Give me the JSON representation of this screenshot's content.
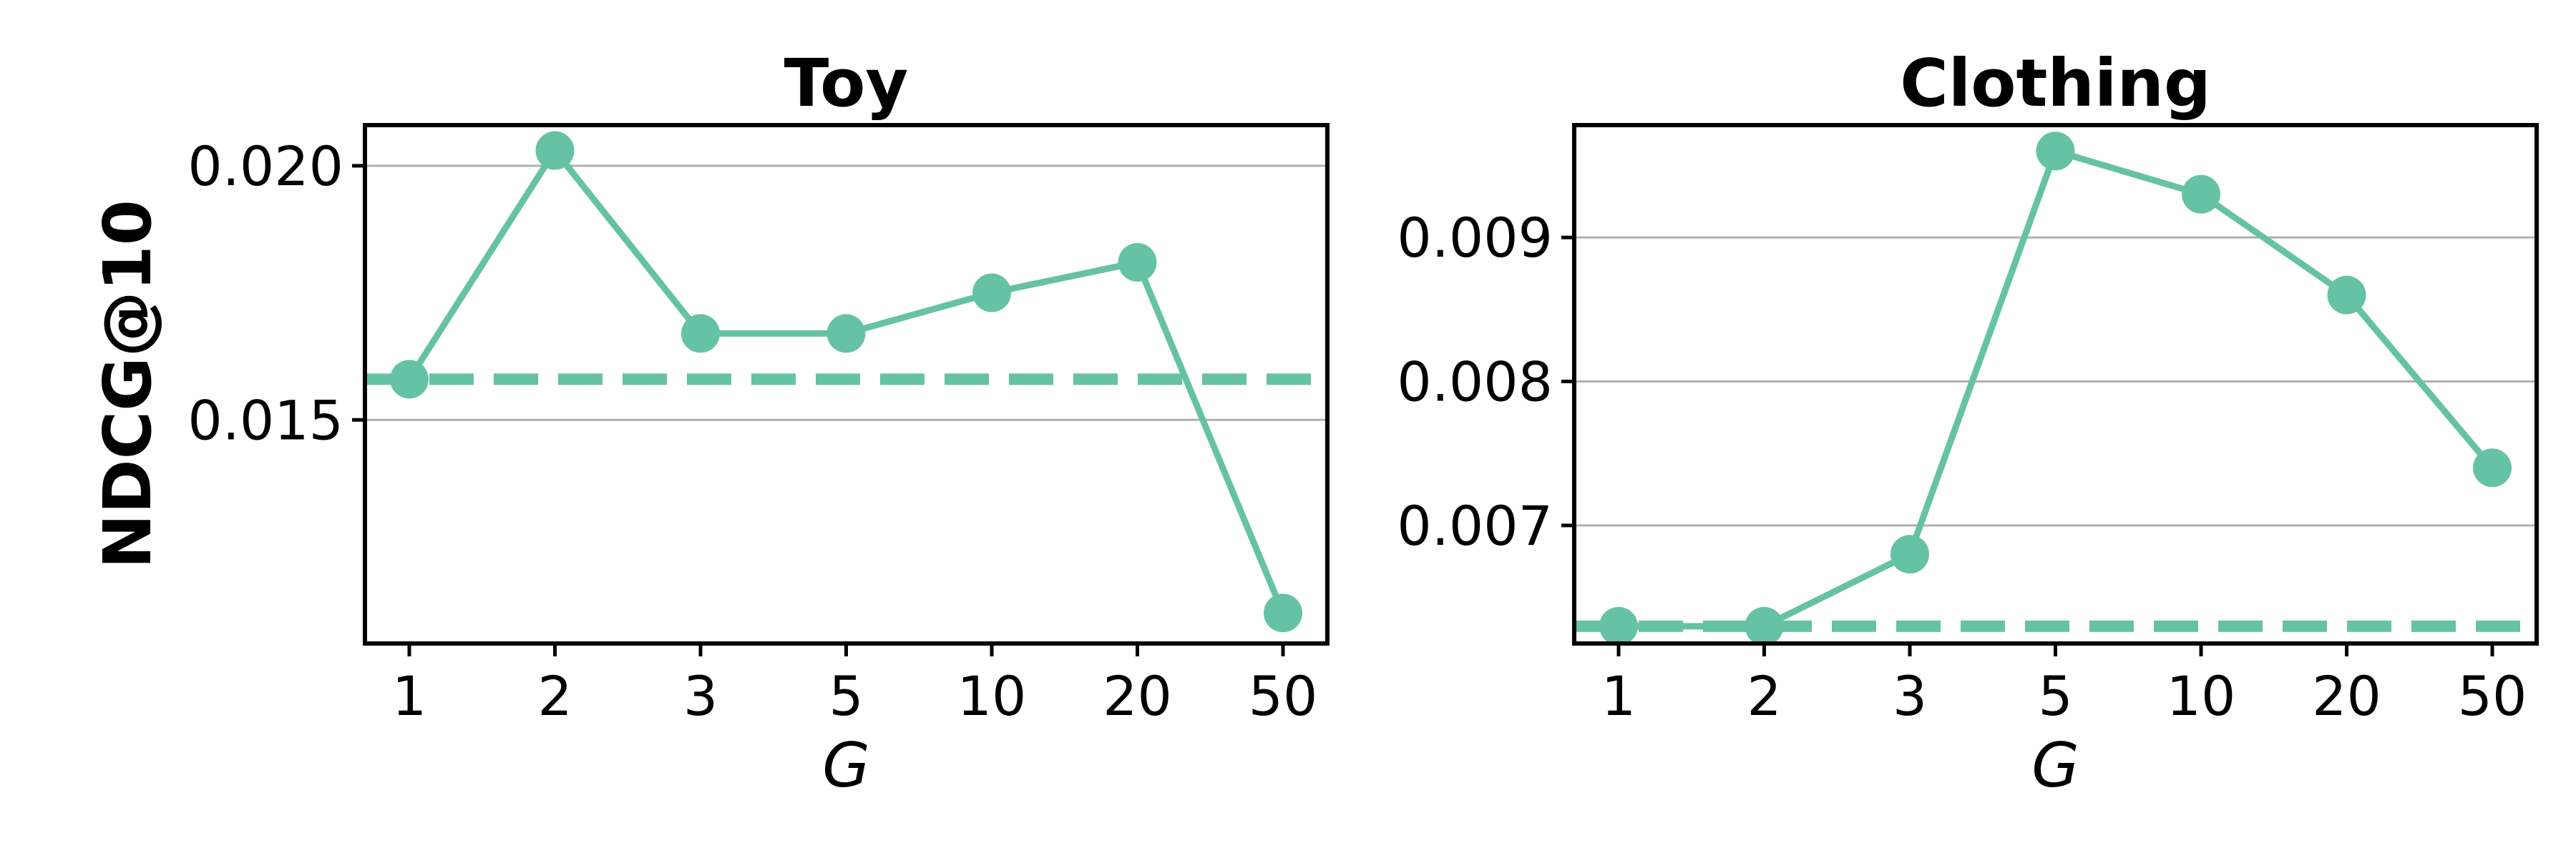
{
  "colors": {
    "series": "#66c2a5",
    "grid": "#b0b0b0",
    "axes": "#000000"
  },
  "chart_data": [
    {
      "type": "line",
      "title": "Toy",
      "xlabel": "G",
      "ylabel": "NDCG@10",
      "categories": [
        "1",
        "2",
        "3",
        "5",
        "10",
        "20",
        "50"
      ],
      "values": [
        0.0158,
        0.0203,
        0.0167,
        0.0167,
        0.0175,
        0.0181,
        0.0112
      ],
      "baseline": 0.0158,
      "ylim": [
        0.0106,
        0.0208
      ],
      "yticks": [
        0.015,
        0.02
      ],
      "ytick_labels": [
        "0.015",
        "0.020"
      ],
      "grid": true,
      "grid_axis": "y"
    },
    {
      "type": "line",
      "title": "Clothing",
      "xlabel": "G",
      "ylabel": "",
      "categories": [
        "1",
        "2",
        "3",
        "5",
        "10",
        "20",
        "50"
      ],
      "values": [
        0.0063,
        0.0063,
        0.0068,
        0.0096,
        0.0093,
        0.0086,
        0.0074
      ],
      "baseline": 0.0063,
      "ylim": [
        0.00618,
        0.00978
      ],
      "yticks": [
        0.007,
        0.008,
        0.009
      ],
      "ytick_labels": [
        "0.007",
        "0.008",
        "0.009"
      ],
      "grid": true,
      "grid_axis": "y"
    }
  ]
}
